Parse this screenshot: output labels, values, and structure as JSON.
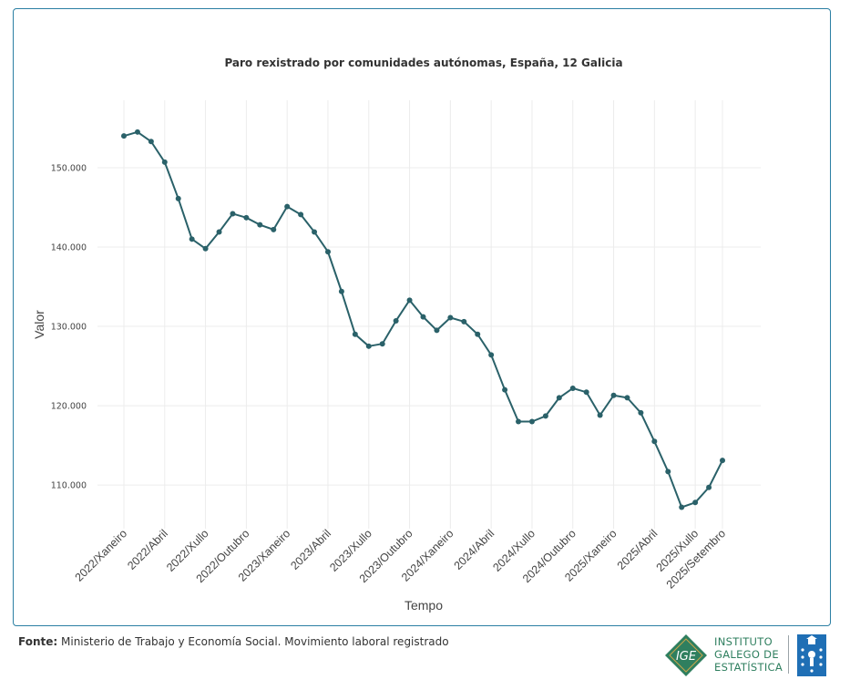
{
  "chart_data": {
    "type": "line",
    "title": "Paro rexistrado por comunidades autónomas, España, 12 Galicia",
    "xlabel": "Tempo",
    "ylabel": "Valor",
    "ylim": [
      104500,
      158500
    ],
    "yticks": [
      110000,
      120000,
      130000,
      140000,
      150000
    ],
    "ytick_labels": [
      "110.000",
      "120.000",
      "130.000",
      "140.000",
      "150.000"
    ],
    "xtick_labels": [
      "2022/Xaneiro",
      "2022/Abril",
      "2022/Xullo",
      "2022/Outubro",
      "2023/Xaneiro",
      "2023/Abril",
      "2023/Xullo",
      "2023/Outubro",
      "2024/Xaneiro",
      "2024/Abril",
      "2024/Xullo",
      "2024/Outubro",
      "2025/Xaneiro",
      "2025/Abril",
      "2025/Xullo",
      "2025/Setembro"
    ],
    "xtick_positions": [
      0,
      3,
      6,
      9,
      12,
      15,
      18,
      21,
      24,
      27,
      30,
      33,
      36,
      39,
      42,
      44
    ],
    "grid": true,
    "series": [
      {
        "name": "12 Galicia",
        "color": "#2a6169",
        "values": [
          154000,
          154500,
          153300,
          150700,
          146100,
          141000,
          139800,
          141900,
          144200,
          143700,
          142800,
          142200,
          145100,
          144100,
          141900,
          139400,
          134400,
          129000,
          127500,
          127800,
          130700,
          133300,
          131200,
          129500,
          131100,
          130600,
          129000,
          126400,
          122000,
          118000,
          118000,
          118700,
          121000,
          122200,
          121700,
          118800,
          121300,
          121000,
          119100,
          115500,
          111700,
          107200,
          107800,
          109700,
          113100
        ]
      }
    ]
  },
  "footer": {
    "source_label": "Fonte:",
    "source_text": "Ministerio de Trabajo y Economía Social. Movimiento laboral registrado"
  },
  "logo": {
    "initials": "IGE",
    "line1": "INSTITUTO",
    "line2": "GALEGO DE",
    "line3": "ESTATÍSTICA"
  },
  "colors": {
    "line": "#2a6169",
    "border": "#2b7fa3",
    "grid": "#ececec",
    "logo_green": "#2f7f5f",
    "shield_blue": "#1f6fb5"
  }
}
